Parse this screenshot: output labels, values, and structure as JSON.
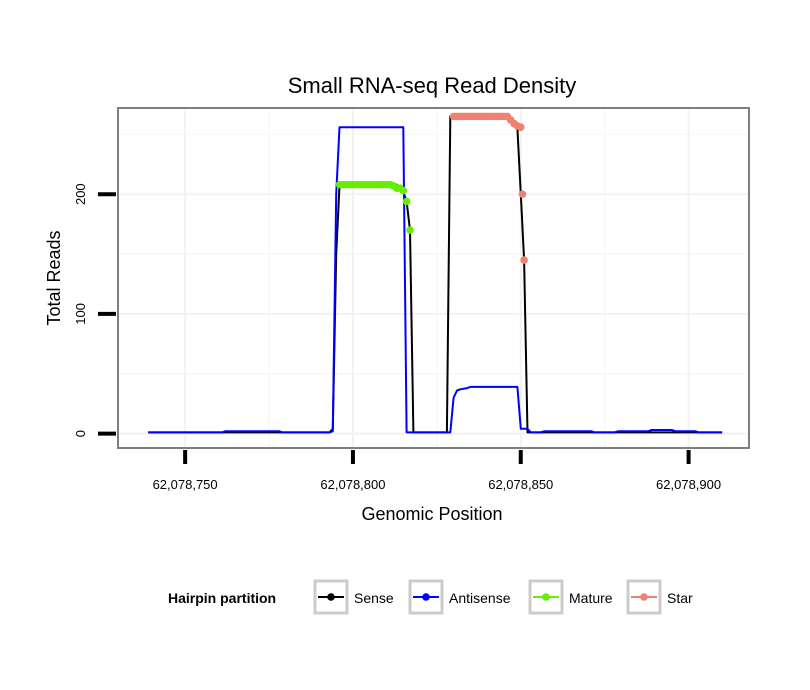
{
  "chart_data": {
    "type": "line",
    "title": "Small RNA-seq Read Density",
    "xlabel": "Genomic Position",
    "ylabel": "Total Reads",
    "xlim": [
      62078730,
      62078918
    ],
    "ylim": [
      -12,
      272
    ],
    "x_ticks": [
      62078750,
      62078800,
      62078850,
      62078900
    ],
    "x_tick_labels": [
      "62,078,750",
      "62,078,800",
      "62,078,850",
      "62,078,900"
    ],
    "y_ticks": [
      0,
      100,
      200
    ],
    "y_tick_labels": [
      "0",
      "100",
      "200"
    ],
    "grid": true,
    "legend": {
      "title": "Hairpin partition",
      "position": "bottom",
      "entries": [
        "Sense",
        "Antisense",
        "Mature",
        "Star"
      ]
    },
    "series": [
      {
        "name": "Sense",
        "color": "#000000",
        "kind": "line",
        "points": [
          [
            62078739,
            1
          ],
          [
            62078793,
            1
          ],
          [
            62078794,
            4
          ],
          [
            62078795,
            150
          ],
          [
            62078796,
            207
          ],
          [
            62078797,
            208
          ],
          [
            62078813,
            208
          ],
          [
            62078815,
            202
          ],
          [
            62078816,
            194
          ],
          [
            62078817,
            170
          ],
          [
            62078818,
            1
          ],
          [
            62078828,
            1
          ],
          [
            62078829,
            265
          ],
          [
            62078846,
            265
          ],
          [
            62078848,
            257
          ],
          [
            62078849,
            255
          ],
          [
            62078850,
            200
          ],
          [
            62078851,
            145
          ],
          [
            62078852,
            1
          ],
          [
            62078910,
            1
          ]
        ]
      },
      {
        "name": "Antisense",
        "color": "#0000ff",
        "kind": "line",
        "points": [
          [
            62078739,
            1
          ],
          [
            62078761,
            1
          ],
          [
            62078762,
            2
          ],
          [
            62078778,
            2
          ],
          [
            62078779,
            1
          ],
          [
            62078793,
            1
          ],
          [
            62078794,
            2
          ],
          [
            62078795,
            200
          ],
          [
            62078796,
            256
          ],
          [
            62078815,
            256
          ],
          [
            62078816,
            1
          ],
          [
            62078829,
            1
          ],
          [
            62078830,
            30
          ],
          [
            62078831,
            36
          ],
          [
            62078832,
            37
          ],
          [
            62078834,
            38
          ],
          [
            62078835,
            39
          ],
          [
            62078849,
            39
          ],
          [
            62078850,
            4
          ],
          [
            62078852,
            4
          ],
          [
            62078853,
            1
          ],
          [
            62078856,
            1
          ],
          [
            62078857,
            2
          ],
          [
            62078871,
            2
          ],
          [
            62078872,
            1
          ],
          [
            62078878,
            1
          ],
          [
            62078879,
            2
          ],
          [
            62078888,
            2
          ],
          [
            62078889,
            3
          ],
          [
            62078895,
            3
          ],
          [
            62078896,
            2
          ],
          [
            62078902,
            2
          ],
          [
            62078903,
            1
          ],
          [
            62078910,
            1
          ]
        ]
      },
      {
        "name": "Mature",
        "color": "#66ee00",
        "kind": "points",
        "points": [
          [
            62078796,
            208
          ],
          [
            62078797,
            208
          ],
          [
            62078798,
            208
          ],
          [
            62078799,
            208
          ],
          [
            62078800,
            208
          ],
          [
            62078801,
            208
          ],
          [
            62078802,
            208
          ],
          [
            62078803,
            208
          ],
          [
            62078804,
            208
          ],
          [
            62078805,
            208
          ],
          [
            62078806,
            208
          ],
          [
            62078807,
            208
          ],
          [
            62078808,
            208
          ],
          [
            62078809,
            208
          ],
          [
            62078810,
            208
          ],
          [
            62078811,
            208
          ],
          [
            62078812,
            207
          ],
          [
            62078813,
            205
          ],
          [
            62078814,
            205
          ],
          [
            62078815,
            203
          ],
          [
            62078816,
            194
          ],
          [
            62078817,
            170
          ]
        ]
      },
      {
        "name": "Star",
        "color": "#f08070",
        "kind": "points",
        "points": [
          [
            62078830,
            265
          ],
          [
            62078831,
            265
          ],
          [
            62078832,
            265
          ],
          [
            62078833,
            265
          ],
          [
            62078834,
            265
          ],
          [
            62078835,
            265
          ],
          [
            62078836,
            265
          ],
          [
            62078837,
            265
          ],
          [
            62078838,
            265
          ],
          [
            62078839,
            265
          ],
          [
            62078840,
            265
          ],
          [
            62078841,
            265
          ],
          [
            62078842,
            265
          ],
          [
            62078843,
            265
          ],
          [
            62078844,
            265
          ],
          [
            62078845,
            265
          ],
          [
            62078846,
            265
          ],
          [
            62078847,
            262
          ],
          [
            62078848,
            259
          ],
          [
            62078849,
            257
          ],
          [
            62078850,
            256
          ],
          [
            62078850.5,
            200
          ],
          [
            62078851,
            145
          ]
        ]
      }
    ]
  }
}
